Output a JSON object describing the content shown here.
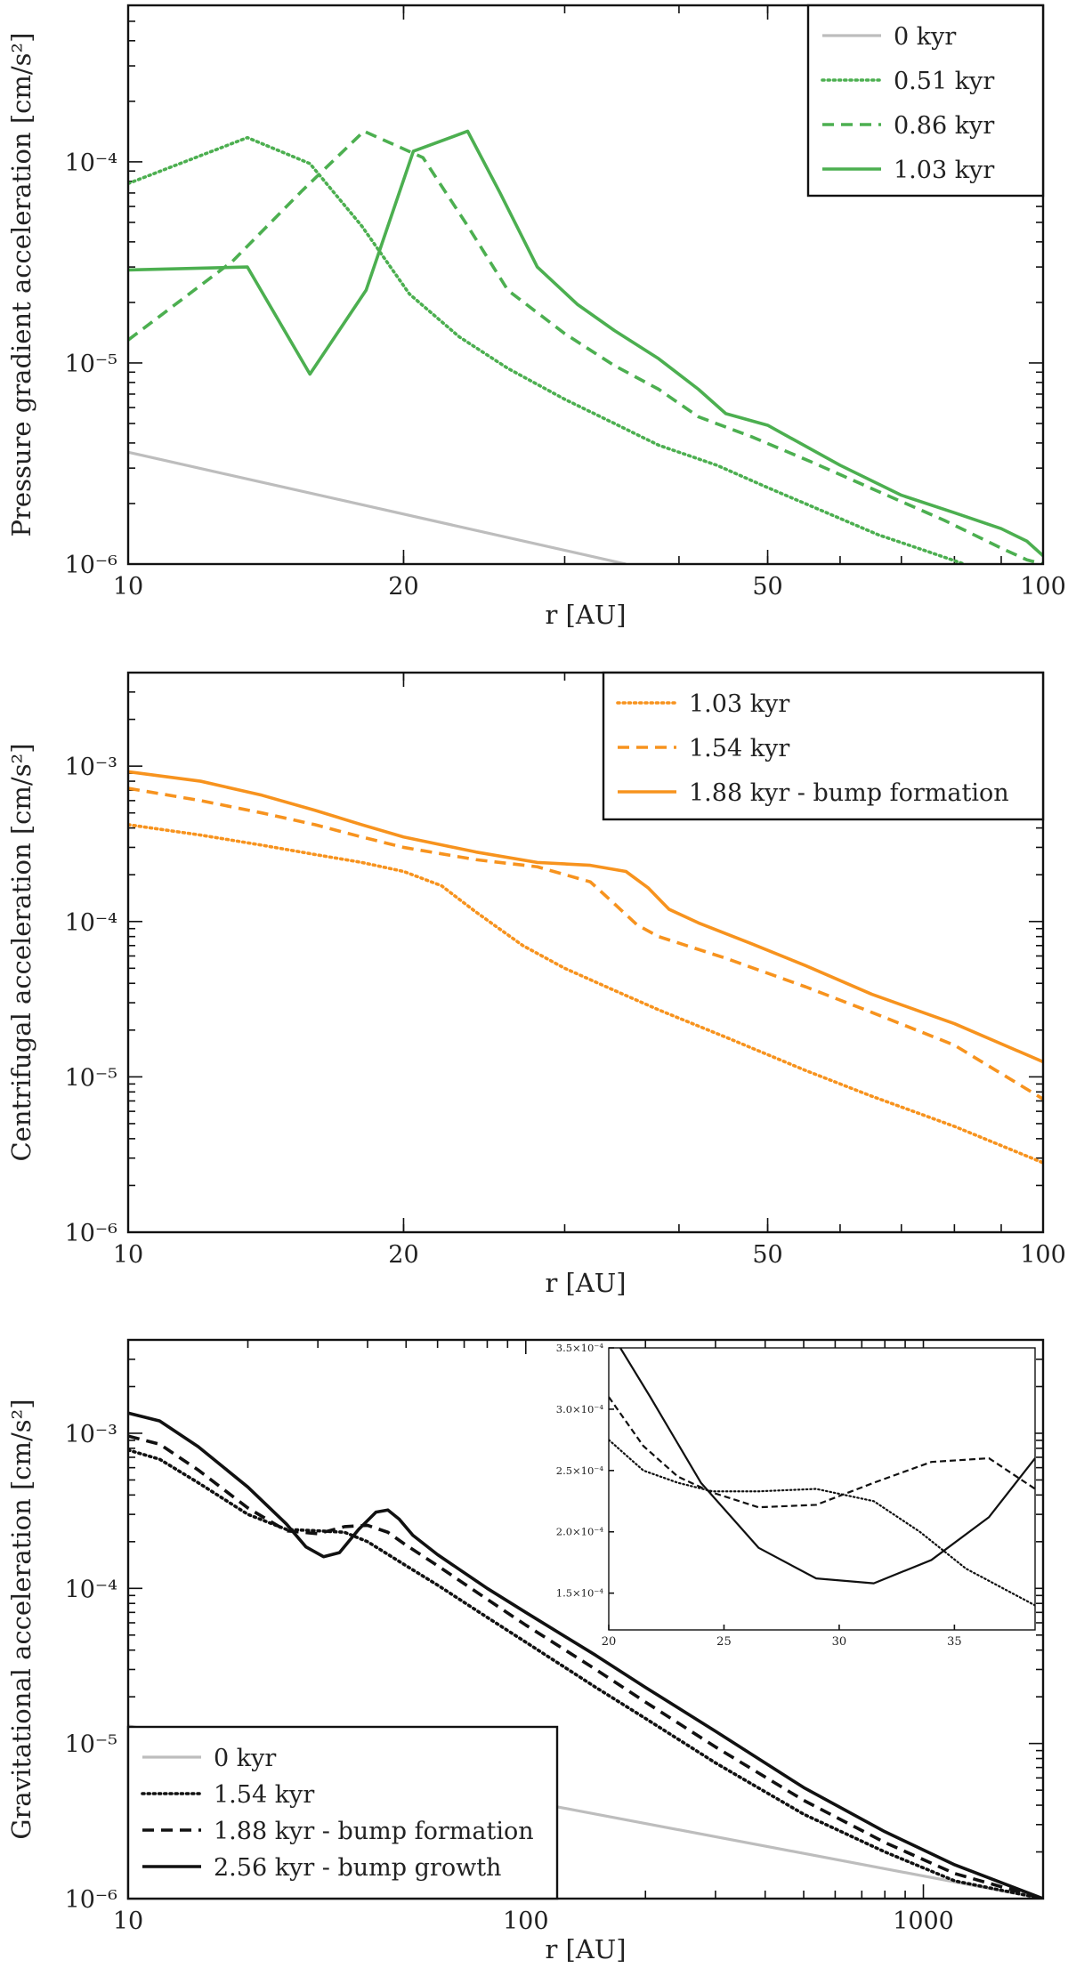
{
  "chart_data": [
    {
      "type": "line",
      "id": "pressure",
      "xlabel": "r [AU]",
      "ylabel": "Pressure gradient acceleration [cm/s²]",
      "xscale": "log",
      "yscale": "log",
      "xlim": [
        10,
        100
      ],
      "ylim": [
        1e-06,
        0.0006
      ],
      "xticks": [
        {
          "v": 10,
          "label": "10"
        },
        {
          "v": 20,
          "label": "20"
        },
        {
          "v": 50,
          "label": "50"
        },
        {
          "v": 100,
          "label": "100"
        }
      ],
      "yticks": [
        {
          "v": 1e-06,
          "label": "10⁻⁶"
        },
        {
          "v": 1e-05,
          "label": "10⁻⁵"
        },
        {
          "v": 0.0001,
          "label": "10⁻⁴"
        }
      ],
      "legend_position": "top-right",
      "series": [
        {
          "name": "0 kyr",
          "color": "#bdbdbd",
          "style": "solid",
          "x": [
            10,
            35
          ],
          "y": [
            3.6e-06,
            1e-06
          ]
        },
        {
          "name": "0.51 kyr",
          "color": "#4caf50",
          "style": "dotted",
          "x": [
            10,
            13.5,
            15.8,
            18,
            20.3,
            23,
            26,
            30,
            34,
            38,
            44,
            50,
            58,
            66,
            75,
            82
          ],
          "y": [
            7.8e-05,
            0.000132,
            9.8e-05,
            4.8e-05,
            2.2e-05,
            1.35e-05,
            9.4e-06,
            6.6e-06,
            5e-06,
            3.9e-06,
            3.1e-06,
            2.4e-06,
            1.8e-06,
            1.4e-06,
            1.15e-06,
            1e-06
          ]
        },
        {
          "name": "0.86 kyr",
          "color": "#4caf50",
          "style": "dashed",
          "x": [
            10,
            13,
            15.5,
            18.1,
            21,
            23.5,
            26,
            30,
            34,
            38,
            42,
            48,
            56,
            66,
            78,
            90,
            96,
            100
          ],
          "y": [
            1.3e-05,
            3.2e-05,
            7.2e-05,
            0.000142,
            0.000105,
            4.8e-05,
            2.3e-05,
            1.4e-05,
            9.7e-06,
            7.4e-06,
            5.4e-06,
            4.3e-06,
            3.2e-06,
            2.3e-06,
            1.65e-06,
            1.2e-06,
            1.05e-06,
            1e-06
          ]
        },
        {
          "name": "1.03 kyr",
          "color": "#4caf50",
          "style": "solid",
          "x": [
            10,
            13.5,
            15.8,
            18.2,
            20.5,
            23.5,
            25.5,
            28,
            31,
            34,
            38,
            42,
            45,
            50,
            60,
            70,
            80,
            90,
            96,
            100
          ],
          "y": [
            2.9e-05,
            3e-05,
            8.8e-06,
            2.3e-05,
            0.000113,
            0.000142,
            7e-05,
            3e-05,
            1.95e-05,
            1.45e-05,
            1.05e-05,
            7.4e-06,
            5.6e-06,
            4.9e-06,
            3.1e-06,
            2.2e-06,
            1.8e-06,
            1.5e-06,
            1.3e-06,
            1.1e-06
          ]
        }
      ]
    },
    {
      "type": "line",
      "id": "centrifugal",
      "xlabel": "r [AU]",
      "ylabel": "Centrifugal acceleration [cm/s²]",
      "xscale": "log",
      "yscale": "log",
      "xlim": [
        10,
        100
      ],
      "ylim": [
        1e-06,
        0.004
      ],
      "xticks": [
        {
          "v": 10,
          "label": "10"
        },
        {
          "v": 20,
          "label": "20"
        },
        {
          "v": 50,
          "label": "50"
        },
        {
          "v": 100,
          "label": "100"
        }
      ],
      "yticks": [
        {
          "v": 1e-06,
          "label": "10⁻⁶"
        },
        {
          "v": 1e-05,
          "label": "10⁻⁵"
        },
        {
          "v": 0.0001,
          "label": "10⁻⁴"
        },
        {
          "v": 0.001,
          "label": "10⁻³"
        }
      ],
      "legend_position": "top-right",
      "series": [
        {
          "name": "1.03 kyr",
          "color": "#f7931e",
          "style": "dotted",
          "x": [
            10,
            12,
            14,
            16,
            18,
            20,
            22,
            24,
            27,
            30,
            34,
            38,
            45,
            55,
            65,
            80,
            100
          ],
          "y": [
            0.00042,
            0.00036,
            0.00031,
            0.00027,
            0.00024,
            0.00021,
            0.00017,
            0.000115,
            7e-05,
            5e-05,
            3.6e-05,
            2.7e-05,
            1.8e-05,
            1.1e-05,
            7.5e-06,
            4.8e-06,
            2.8e-06
          ]
        },
        {
          "name": "1.54 kyr",
          "color": "#f7931e",
          "style": "dashed",
          "x": [
            10,
            12,
            14,
            16,
            18,
            20,
            24,
            28,
            32,
            34,
            36,
            38,
            45,
            55,
            65,
            80,
            100
          ],
          "y": [
            0.00072,
            0.0006,
            0.0005,
            0.00042,
            0.00035,
            0.0003,
            0.00025,
            0.000225,
            0.00018,
            0.00013,
            9.5e-05,
            8e-05,
            5.8e-05,
            3.8e-05,
            2.6e-05,
            1.6e-05,
            7.2e-06
          ]
        },
        {
          "name": "1.88 kyr - bump formation",
          "color": "#f7931e",
          "style": "solid",
          "x": [
            10,
            12,
            14,
            16,
            18,
            20,
            24,
            28,
            32,
            35,
            37,
            39,
            42,
            48,
            55,
            65,
            80,
            100
          ],
          "y": [
            0.00092,
            0.0008,
            0.00065,
            0.00052,
            0.00042,
            0.00035,
            0.00028,
            0.00024,
            0.00023,
            0.00021,
            0.000165,
            0.00012,
            9.8e-05,
            7.2e-05,
            5.2e-05,
            3.4e-05,
            2.2e-05,
            1.25e-05
          ]
        }
      ]
    },
    {
      "type": "line",
      "id": "gravitational",
      "xlabel": "r [AU]",
      "ylabel": "Gravitational acceleration [cm/s²]",
      "xscale": "log",
      "yscale": "log",
      "xlim": [
        10,
        2000
      ],
      "ylim": [
        1e-06,
        0.004
      ],
      "xticks": [
        {
          "v": 10,
          "label": "10"
        },
        {
          "v": 100,
          "label": "100"
        },
        {
          "v": 1000,
          "label": "1000"
        }
      ],
      "yticks": [
        {
          "v": 1e-06,
          "label": "10⁻⁶"
        },
        {
          "v": 1e-05,
          "label": "10⁻⁵"
        },
        {
          "v": 0.0001,
          "label": "10⁻⁴"
        },
        {
          "v": 0.001,
          "label": "10⁻³"
        }
      ],
      "legend_position": "bottom-left",
      "series": [
        {
          "name": "0 kyr",
          "color": "#bdbdbd",
          "style": "solid",
          "x": [
            10,
            2000
          ],
          "y": [
            1.3e-05,
            1e-06
          ]
        },
        {
          "name": "1.54 kyr",
          "color": "#111111",
          "style": "dotted",
          "x": [
            10,
            12,
            15,
            20,
            25,
            30,
            35,
            40,
            50,
            60,
            80,
            100,
            150,
            200,
            300,
            500,
            800,
            1200,
            2000
          ],
          "y": [
            0.00078,
            0.00068,
            0.00048,
            0.0003,
            0.00024,
            0.000235,
            0.00023,
            0.0002,
            0.00014,
            0.000105,
            6.5e-05,
            4.5e-05,
            2.3e-05,
            1.45e-05,
            7.5e-06,
            3.5e-06,
            2e-06,
            1.3e-06,
            1e-06
          ]
        },
        {
          "name": "1.88 kyr - bump formation",
          "color": "#111111",
          "style": "dashed",
          "x": [
            10,
            12,
            15,
            20,
            25,
            30,
            35,
            40,
            45,
            50,
            60,
            80,
            100,
            150,
            200,
            300,
            500,
            800,
            1200,
            2000
          ],
          "y": [
            0.00096,
            0.00085,
            0.00058,
            0.00033,
            0.000235,
            0.000225,
            0.00025,
            0.000255,
            0.00023,
            0.00019,
            0.00014,
            8.5e-05,
            5.8e-05,
            3e-05,
            1.85e-05,
            9.5e-06,
            4.3e-06,
            2.3e-06,
            1.45e-06,
            1e-06
          ]
        },
        {
          "name": "2.56 kyr - bump growth",
          "color": "#111111",
          "style": "solid",
          "x": [
            10,
            12,
            15,
            20,
            25,
            28,
            31,
            34,
            38,
            42,
            45,
            48,
            52,
            60,
            80,
            100,
            150,
            200,
            300,
            500,
            800,
            1200,
            2000
          ],
          "y": [
            0.00135,
            0.0012,
            0.00082,
            0.00045,
            0.00026,
            0.000185,
            0.00016,
            0.00017,
            0.00024,
            0.00031,
            0.00032,
            0.00028,
            0.00022,
            0.000165,
            0.0001,
            7e-05,
            3.7e-05,
            2.3e-05,
            1.2e-05,
            5.2e-06,
            2.7e-06,
            1.65e-06,
            1e-06
          ]
        }
      ],
      "inset": {
        "xscale": "linear",
        "yscale": "linear",
        "xlim": [
          20,
          38.5
        ],
        "ylim": [
          0.00012,
          0.00035
        ],
        "xticks": [
          {
            "v": 20,
            "label": "20"
          },
          {
            "v": 25,
            "label": "25"
          },
          {
            "v": 30,
            "label": "30"
          },
          {
            "v": 35,
            "label": "35"
          }
        ],
        "yticks": [
          {
            "v": 0.00015,
            "label": "1.5×10⁻⁴"
          },
          {
            "v": 0.0002,
            "label": "2.0×10⁻⁴"
          },
          {
            "v": 0.00025,
            "label": "2.5×10⁻⁴"
          },
          {
            "v": 0.0003,
            "label": "3.0×10⁻⁴"
          },
          {
            "v": 0.00035,
            "label": "3.5×10⁻⁴"
          }
        ],
        "series": [
          {
            "color": "#111111",
            "style": "dotted",
            "x": [
              20,
              21.5,
              23,
              24.5,
              26.5,
              29,
              31.5,
              33.5,
              35.5,
              37,
              38.5
            ],
            "y": [
              0.000275,
              0.00025,
              0.00024,
              0.000233,
              0.000233,
              0.000235,
              0.000225,
              0.0002,
              0.00017,
              0.000155,
              0.00014
            ]
          },
          {
            "color": "#111111",
            "style": "dashed",
            "x": [
              20,
              21.5,
              23,
              24.5,
              26.5,
              29,
              31.5,
              34,
              36.5,
              38.5
            ],
            "y": [
              0.00031,
              0.00027,
              0.000245,
              0.000232,
              0.00022,
              0.000222,
              0.00024,
              0.000257,
              0.00026,
              0.000235
            ]
          },
          {
            "color": "#111111",
            "style": "solid",
            "x": [
              20.5,
              21.8,
              24,
              26.5,
              29,
              31.5,
              34,
              36.5,
              38.5
            ],
            "y": [
              0.00035,
              0.00031,
              0.00024,
              0.000187,
              0.000162,
              0.000158,
              0.000177,
              0.000212,
              0.00026
            ]
          }
        ]
      }
    }
  ]
}
